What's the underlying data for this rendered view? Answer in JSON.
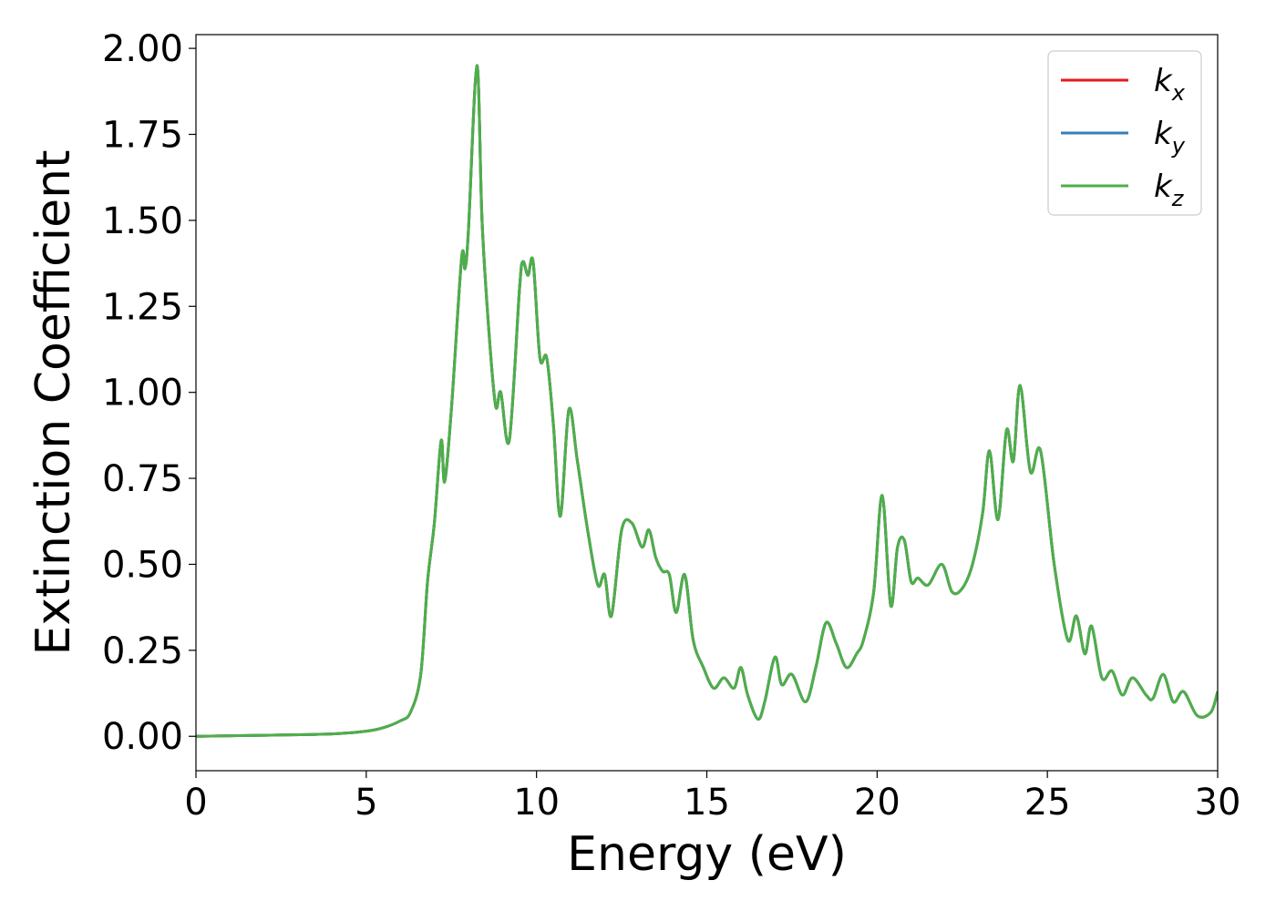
{
  "chart_data": {
    "type": "line",
    "xlabel": "Energy (eV)",
    "ylabel": "Extinction Coefficient",
    "xlim": [
      0,
      30
    ],
    "ylim": [
      -0.1,
      2.04
    ],
    "x_ticks": [
      "0",
      "5",
      "10",
      "15",
      "20",
      "25",
      "30"
    ],
    "y_ticks": [
      "0.00",
      "0.25",
      "0.50",
      "0.75",
      "1.00",
      "1.25",
      "1.50",
      "1.75",
      "2.00"
    ],
    "grid": false,
    "legend": {
      "position": "top-right"
    },
    "series": [
      {
        "name": "k",
        "subscript": "x",
        "color": "#e41a1c",
        "x": [
          0,
          2,
          4,
          5,
          5.5,
          6,
          6.3,
          6.6,
          6.8,
          7.0,
          7.2,
          7.3,
          7.5,
          7.8,
          7.9,
          8.0,
          8.25,
          8.4,
          8.6,
          8.8,
          8.95,
          9.2,
          9.5,
          9.6,
          9.75,
          9.9,
          10.1,
          10.3,
          10.5,
          10.7,
          10.95,
          11.2,
          11.5,
          11.8,
          12.0,
          12.2,
          12.5,
          12.8,
          13.1,
          13.3,
          13.5,
          13.7,
          13.9,
          14.1,
          14.35,
          14.6,
          14.9,
          15.2,
          15.5,
          15.8,
          16.0,
          16.2,
          16.5,
          16.7,
          17.0,
          17.2,
          17.5,
          17.9,
          18.2,
          18.5,
          18.8,
          19.1,
          19.4,
          19.6,
          19.9,
          20.15,
          20.4,
          20.6,
          20.8,
          21.0,
          21.2,
          21.5,
          21.9,
          22.2,
          22.5,
          22.8,
          23.1,
          23.3,
          23.55,
          23.8,
          24.0,
          24.2,
          24.5,
          24.8,
          25.2,
          25.6,
          25.85,
          26.1,
          26.3,
          26.6,
          26.9,
          27.2,
          27.5,
          27.9,
          28.1,
          28.4,
          28.7,
          29.0,
          29.4,
          29.8,
          30.0
        ],
        "y": [
          0.0,
          0.003,
          0.007,
          0.015,
          0.025,
          0.045,
          0.07,
          0.18,
          0.45,
          0.62,
          0.86,
          0.74,
          0.95,
          1.39,
          1.36,
          1.47,
          1.95,
          1.5,
          1.18,
          0.96,
          1.0,
          0.86,
          1.3,
          1.38,
          1.34,
          1.38,
          1.1,
          1.1,
          0.9,
          0.64,
          0.95,
          0.8,
          0.6,
          0.44,
          0.47,
          0.35,
          0.6,
          0.62,
          0.55,
          0.6,
          0.52,
          0.48,
          0.47,
          0.36,
          0.47,
          0.28,
          0.2,
          0.14,
          0.17,
          0.14,
          0.2,
          0.12,
          0.05,
          0.1,
          0.23,
          0.15,
          0.18,
          0.1,
          0.2,
          0.33,
          0.27,
          0.2,
          0.24,
          0.28,
          0.42,
          0.7,
          0.38,
          0.55,
          0.57,
          0.45,
          0.46,
          0.44,
          0.5,
          0.42,
          0.43,
          0.5,
          0.65,
          0.83,
          0.63,
          0.89,
          0.8,
          1.02,
          0.77,
          0.83,
          0.5,
          0.28,
          0.35,
          0.24,
          0.32,
          0.17,
          0.19,
          0.12,
          0.17,
          0.12,
          0.11,
          0.18,
          0.1,
          0.13,
          0.06,
          0.07,
          0.13
        ]
      },
      {
        "name": "k",
        "subscript": "y",
        "color": "#377eb8",
        "x": [
          0,
          2,
          4,
          5,
          5.5,
          6,
          6.3,
          6.6,
          6.8,
          7.0,
          7.2,
          7.3,
          7.5,
          7.8,
          7.9,
          8.0,
          8.25,
          8.4,
          8.6,
          8.8,
          8.95,
          9.2,
          9.5,
          9.6,
          9.75,
          9.9,
          10.1,
          10.3,
          10.5,
          10.7,
          10.95,
          11.2,
          11.5,
          11.8,
          12.0,
          12.2,
          12.5,
          12.8,
          13.1,
          13.3,
          13.5,
          13.7,
          13.9,
          14.1,
          14.35,
          14.6,
          14.9,
          15.2,
          15.5,
          15.8,
          16.0,
          16.2,
          16.5,
          16.7,
          17.0,
          17.2,
          17.5,
          17.9,
          18.2,
          18.5,
          18.8,
          19.1,
          19.4,
          19.6,
          19.9,
          20.15,
          20.4,
          20.6,
          20.8,
          21.0,
          21.2,
          21.5,
          21.9,
          22.2,
          22.5,
          22.8,
          23.1,
          23.3,
          23.55,
          23.8,
          24.0,
          24.2,
          24.5,
          24.8,
          25.2,
          25.6,
          25.85,
          26.1,
          26.3,
          26.6,
          26.9,
          27.2,
          27.5,
          27.9,
          28.1,
          28.4,
          28.7,
          29.0,
          29.4,
          29.8,
          30.0
        ],
        "y": [
          0.0,
          0.003,
          0.007,
          0.015,
          0.025,
          0.045,
          0.07,
          0.18,
          0.45,
          0.62,
          0.86,
          0.74,
          0.95,
          1.39,
          1.36,
          1.47,
          1.95,
          1.5,
          1.18,
          0.96,
          1.0,
          0.86,
          1.3,
          1.38,
          1.34,
          1.38,
          1.1,
          1.1,
          0.9,
          0.64,
          0.95,
          0.8,
          0.6,
          0.44,
          0.47,
          0.35,
          0.6,
          0.62,
          0.55,
          0.6,
          0.52,
          0.48,
          0.47,
          0.36,
          0.47,
          0.28,
          0.2,
          0.14,
          0.17,
          0.14,
          0.2,
          0.12,
          0.05,
          0.1,
          0.23,
          0.15,
          0.18,
          0.1,
          0.2,
          0.33,
          0.27,
          0.2,
          0.24,
          0.28,
          0.42,
          0.7,
          0.38,
          0.55,
          0.57,
          0.45,
          0.46,
          0.44,
          0.5,
          0.42,
          0.43,
          0.5,
          0.65,
          0.83,
          0.63,
          0.89,
          0.8,
          1.02,
          0.77,
          0.83,
          0.5,
          0.28,
          0.35,
          0.24,
          0.32,
          0.17,
          0.19,
          0.12,
          0.17,
          0.12,
          0.11,
          0.18,
          0.1,
          0.13,
          0.06,
          0.07,
          0.13
        ]
      },
      {
        "name": "k",
        "subscript": "z",
        "color": "#4daf4a",
        "x": [
          0,
          2,
          4,
          5,
          5.5,
          6,
          6.3,
          6.6,
          6.8,
          7.0,
          7.2,
          7.3,
          7.5,
          7.8,
          7.9,
          8.0,
          8.25,
          8.4,
          8.6,
          8.8,
          8.95,
          9.2,
          9.5,
          9.6,
          9.75,
          9.9,
          10.1,
          10.3,
          10.5,
          10.7,
          10.95,
          11.2,
          11.5,
          11.8,
          12.0,
          12.2,
          12.5,
          12.8,
          13.1,
          13.3,
          13.5,
          13.7,
          13.9,
          14.1,
          14.35,
          14.6,
          14.9,
          15.2,
          15.5,
          15.8,
          16.0,
          16.2,
          16.5,
          16.7,
          17.0,
          17.2,
          17.5,
          17.9,
          18.2,
          18.5,
          18.8,
          19.1,
          19.4,
          19.6,
          19.9,
          20.15,
          20.4,
          20.6,
          20.8,
          21.0,
          21.2,
          21.5,
          21.9,
          22.2,
          22.5,
          22.8,
          23.1,
          23.3,
          23.55,
          23.8,
          24.0,
          24.2,
          24.5,
          24.8,
          25.2,
          25.6,
          25.85,
          26.1,
          26.3,
          26.6,
          26.9,
          27.2,
          27.5,
          27.9,
          28.1,
          28.4,
          28.7,
          29.0,
          29.4,
          29.8,
          30.0
        ],
        "y": [
          0.0,
          0.003,
          0.007,
          0.015,
          0.025,
          0.045,
          0.07,
          0.18,
          0.45,
          0.62,
          0.86,
          0.74,
          0.95,
          1.39,
          1.36,
          1.47,
          1.95,
          1.5,
          1.18,
          0.96,
          1.0,
          0.86,
          1.3,
          1.38,
          1.34,
          1.38,
          1.1,
          1.1,
          0.9,
          0.64,
          0.95,
          0.8,
          0.6,
          0.44,
          0.47,
          0.35,
          0.6,
          0.62,
          0.55,
          0.6,
          0.52,
          0.48,
          0.47,
          0.36,
          0.47,
          0.28,
          0.2,
          0.14,
          0.17,
          0.14,
          0.2,
          0.12,
          0.05,
          0.1,
          0.23,
          0.15,
          0.18,
          0.1,
          0.2,
          0.33,
          0.27,
          0.2,
          0.24,
          0.28,
          0.42,
          0.7,
          0.38,
          0.55,
          0.57,
          0.45,
          0.46,
          0.44,
          0.5,
          0.42,
          0.43,
          0.5,
          0.65,
          0.83,
          0.63,
          0.89,
          0.8,
          1.02,
          0.77,
          0.83,
          0.5,
          0.28,
          0.35,
          0.24,
          0.32,
          0.17,
          0.19,
          0.12,
          0.17,
          0.12,
          0.11,
          0.18,
          0.1,
          0.13,
          0.06,
          0.07,
          0.13
        ]
      }
    ]
  }
}
